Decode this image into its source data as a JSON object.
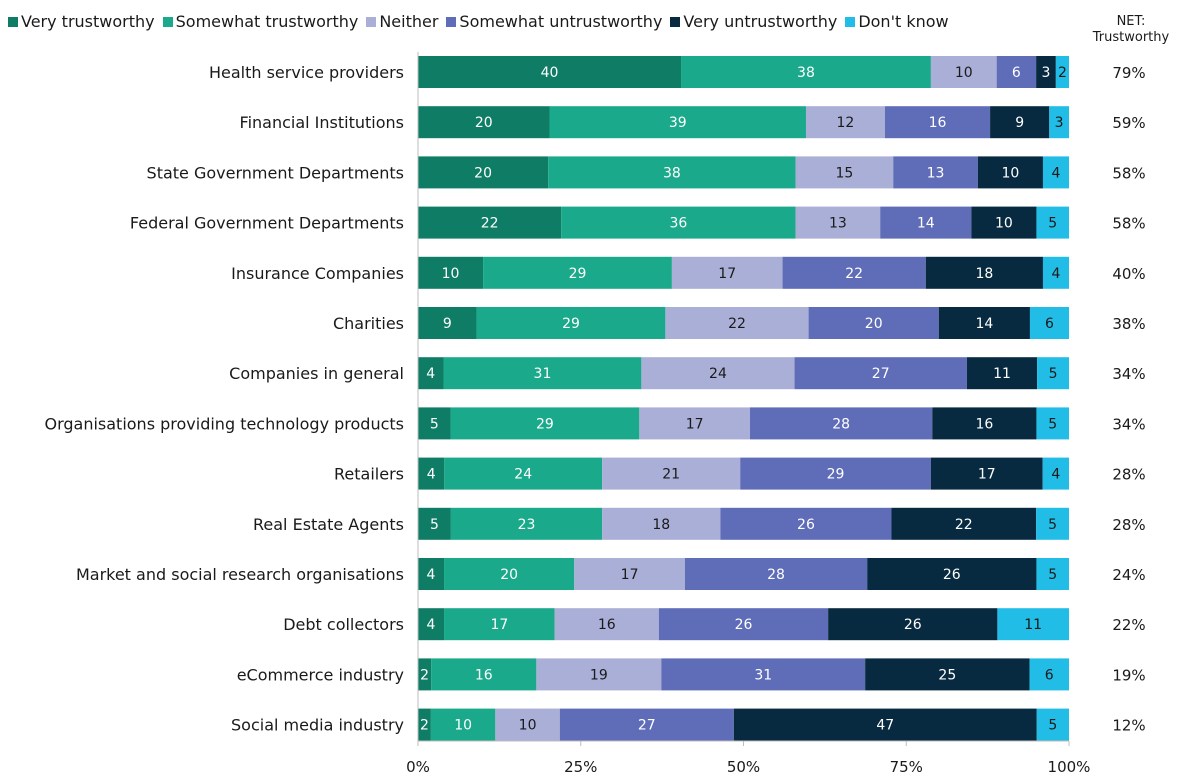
{
  "chart_data": {
    "type": "bar",
    "orientation": "horizontal",
    "stacked": true,
    "categories": [
      "Health service providers",
      "Financial Institutions",
      "State Government Departments",
      "Federal Government Departments",
      "Insurance Companies",
      "Charities",
      "Companies in general",
      "Organisations providing technology products",
      "Retailers",
      "Real Estate Agents",
      "Market and social research organisations",
      "Debt collectors",
      "eCommerce industry",
      "Social media industry"
    ],
    "series": [
      {
        "name": "Very trustworthy",
        "color": "#0f7d65",
        "values": [
          40,
          20,
          20,
          22,
          10,
          9,
          4,
          5,
          4,
          5,
          4,
          4,
          2,
          2
        ]
      },
      {
        "name": "Somewhat trustworthy",
        "color": "#1aa98a",
        "values": [
          38,
          39,
          38,
          36,
          29,
          29,
          31,
          29,
          24,
          23,
          20,
          17,
          16,
          10
        ]
      },
      {
        "name": "Neither",
        "color": "#a9afd6",
        "values": [
          10,
          12,
          15,
          13,
          17,
          22,
          24,
          17,
          21,
          18,
          17,
          16,
          19,
          10
        ]
      },
      {
        "name": "Somewhat untrustworthy",
        "color": "#5f6cb7",
        "values": [
          6,
          16,
          13,
          14,
          22,
          20,
          27,
          28,
          29,
          26,
          28,
          26,
          31,
          27
        ]
      },
      {
        "name": "Very untrustworthy",
        "color": "#072a40",
        "values": [
          3,
          9,
          10,
          10,
          18,
          14,
          11,
          16,
          17,
          22,
          26,
          26,
          25,
          47
        ]
      },
      {
        "name": "Don't know",
        "color": "#22bde6",
        "values": [
          2,
          3,
          4,
          5,
          4,
          6,
          5,
          5,
          4,
          5,
          5,
          11,
          6,
          5
        ]
      }
    ],
    "net_label": "NET:\nTrustworthy",
    "net_values": [
      "79%",
      "59%",
      "58%",
      "58%",
      "40%",
      "38%",
      "34%",
      "34%",
      "28%",
      "28%",
      "24%",
      "22%",
      "19%",
      "12%"
    ],
    "x_ticks": [
      "0%",
      "25%",
      "50%",
      "75%",
      "100%"
    ],
    "xlim": [
      0,
      100
    ],
    "legend_position": "top",
    "grid": false
  }
}
